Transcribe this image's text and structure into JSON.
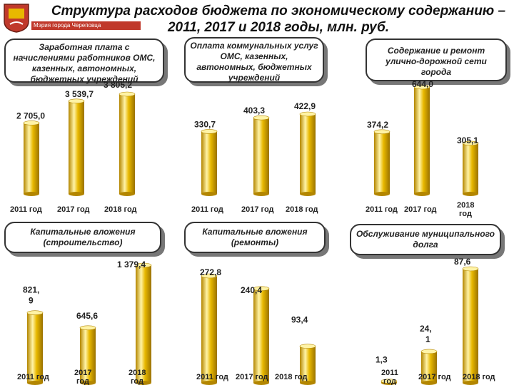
{
  "header": {
    "title_line1": "Структура расходов бюджета по экономическому содержанию –",
    "title_line2": "2011, 2017 и 2018 годы, млн. руб.",
    "logo_caption": "Мэрия города Череповца"
  },
  "colors": {
    "bar": "#e8b800",
    "bar_dark": "#b38600",
    "bar_light": "#fff3a6",
    "box_shadow": "#777777"
  },
  "chart_data": [
    {
      "type": "bar",
      "title": "Заработная плата с начислениями работников ОМС, казенных, автономных, бюджетных учреждений",
      "categories": [
        "2011 год",
        "2017 год",
        "2018 год"
      ],
      "value_labels": [
        "2 705,0",
        "3 539,7",
        "3 805,2"
      ],
      "values": [
        2705.0,
        3539.7,
        3805.2
      ]
    },
    {
      "type": "bar",
      "title": "Оплата коммунальных услуг ОМС, казенных, автономных, бюджетных учреждений",
      "categories": [
        "2011 год",
        "2017 год",
        "2018 год"
      ],
      "value_labels": [
        "330,7",
        "403,3",
        "422,9"
      ],
      "values": [
        330.7,
        403.3,
        422.9
      ]
    },
    {
      "type": "bar",
      "title": "Содержание и ремонт улично-дорожной сети города",
      "categories": [
        "2011 год",
        "2017 год",
        "2018 год"
      ],
      "value_labels": [
        "374,2",
        "644,0",
        "305,1"
      ],
      "values": [
        374.2,
        644.0,
        305.1
      ]
    },
    {
      "type": "bar",
      "title": "Капитальные вложения (строительство)",
      "categories": [
        "2011 год",
        "2017 год",
        "2018 год"
      ],
      "value_labels": [
        "821, 9",
        "645,6",
        "1 379,4"
      ],
      "values": [
        821.9,
        645.6,
        1379.4
      ]
    },
    {
      "type": "bar",
      "title": "Капитальные вложения (ремонты)",
      "categories": [
        "2011 год",
        "2017 год",
        "2018 год"
      ],
      "value_labels": [
        "272,8",
        "240,4",
        "93,4"
      ],
      "values": [
        272.8,
        240.4,
        93.4
      ]
    },
    {
      "type": "bar",
      "title": "Обслуживание муниципального долга",
      "categories": [
        "2011 год",
        "2017 год",
        "2018 год"
      ],
      "value_labels": [
        "1,3",
        "24, 1",
        "87,6"
      ],
      "values": [
        1.3,
        24.1,
        87.6
      ]
    }
  ]
}
